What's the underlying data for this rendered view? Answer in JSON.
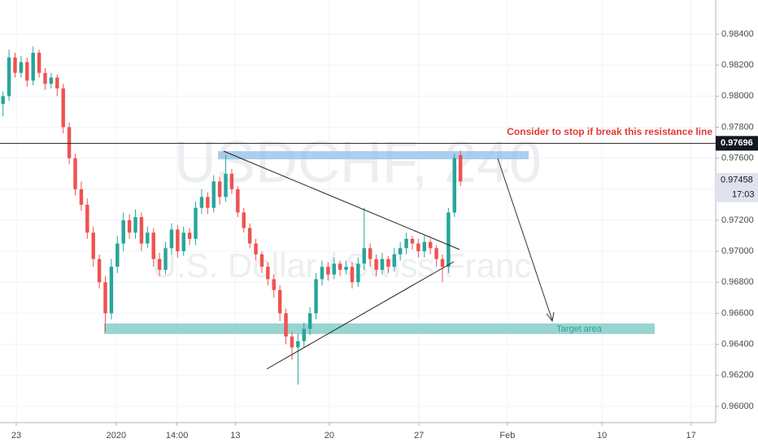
{
  "chart_data": {
    "type": "candlestick",
    "watermark_symbol": "USDCHF, 240",
    "watermark_name": "U.S. Dollar / Swiss Franc",
    "annotation": "Consider to stop if break this resistance line",
    "target_label": "Target area",
    "up_color": "#26a69a",
    "down_color": "#ef5350",
    "open": [
      0.9795,
      0.98,
      0.9825,
      0.9815,
      0.9822,
      0.981,
      0.9828,
      0.9815,
      0.9808,
      0.9812,
      0.9805,
      0.978,
      0.976,
      0.974,
      0.973,
      0.9712,
      0.9695,
      0.968,
      0.966,
      0.969,
      0.9705,
      0.972,
      0.9712,
      0.9722,
      0.9705,
      0.9712,
      0.9695,
      0.9688,
      0.9702,
      0.9714,
      0.97,
      0.9712,
      0.9708,
      0.9728,
      0.9735,
      0.9728,
      0.9745,
      0.9735,
      0.975,
      0.974,
      0.9725,
      0.9715,
      0.9705,
      0.9698,
      0.969,
      0.9682,
      0.9675,
      0.966,
      0.9645,
      0.9638,
      0.9642,
      0.965,
      0.966,
      0.9682,
      0.969,
      0.9685,
      0.9692,
      0.9688,
      0.969,
      0.968,
      0.9692,
      0.9702,
      0.9695,
      0.9688,
      0.9695,
      0.969,
      0.9698,
      0.9702,
      0.9708,
      0.9705,
      0.97,
      0.9706,
      0.9702,
      0.9695,
      0.969,
      0.9725,
      0.9762
    ],
    "high": [
      0.9803,
      0.983,
      0.9828,
      0.9826,
      0.9825,
      0.9832,
      0.983,
      0.9818,
      0.9815,
      0.9814,
      0.9808,
      0.9783,
      0.9763,
      0.9745,
      0.9734,
      0.9716,
      0.9698,
      0.9684,
      0.9695,
      0.971,
      0.9725,
      0.9724,
      0.9727,
      0.9725,
      0.9716,
      0.9715,
      0.9699,
      0.9706,
      0.9718,
      0.9717,
      0.9716,
      0.9715,
      0.9732,
      0.974,
      0.9738,
      0.9749,
      0.9748,
      0.9762,
      0.9753,
      0.9742,
      0.9728,
      0.9718,
      0.9708,
      0.97,
      0.9693,
      0.9685,
      0.9678,
      0.9663,
      0.9648,
      0.9647,
      0.9654,
      0.9664,
      0.9686,
      0.9694,
      0.9693,
      0.9696,
      0.9694,
      0.9694,
      0.9693,
      0.9696,
      0.9728,
      0.9705,
      0.9698,
      0.9699,
      0.9697,
      0.9702,
      0.9706,
      0.9712,
      0.971,
      0.9708,
      0.971,
      0.9708,
      0.9704,
      0.9698,
      0.9728,
      0.9763,
      0.9765
    ],
    "low": [
      0.9787,
      0.9797,
      0.9812,
      0.9812,
      0.9806,
      0.9807,
      0.9812,
      0.9804,
      0.9805,
      0.98,
      0.9776,
      0.9756,
      0.9736,
      0.9726,
      0.9708,
      0.969,
      0.9676,
      0.9648,
      0.9656,
      0.9686,
      0.97,
      0.9708,
      0.9708,
      0.97,
      0.9702,
      0.969,
      0.9684,
      0.9685,
      0.9698,
      0.9696,
      0.9697,
      0.9704,
      0.9704,
      0.9724,
      0.9724,
      0.9725,
      0.973,
      0.9732,
      0.9737,
      0.9722,
      0.9712,
      0.9702,
      0.9694,
      0.9686,
      0.9678,
      0.967,
      0.9655,
      0.964,
      0.963,
      0.9614,
      0.9638,
      0.9646,
      0.9656,
      0.9678,
      0.9681,
      0.9682,
      0.9684,
      0.9685,
      0.9676,
      0.9677,
      0.9688,
      0.969,
      0.9684,
      0.9685,
      0.9686,
      0.9687,
      0.9694,
      0.9698,
      0.9701,
      0.9696,
      0.9696,
      0.9698,
      0.969,
      0.968,
      0.9686,
      0.9722,
      0.9742
    ],
    "close": [
      0.98,
      0.9825,
      0.9815,
      0.9822,
      0.981,
      0.9828,
      0.9815,
      0.9808,
      0.9812,
      0.9805,
      0.978,
      0.976,
      0.974,
      0.973,
      0.9712,
      0.9695,
      0.968,
      0.966,
      0.969,
      0.9705,
      0.972,
      0.9712,
      0.9722,
      0.9705,
      0.9712,
      0.9695,
      0.9688,
      0.9702,
      0.9714,
      0.97,
      0.9712,
      0.9708,
      0.9728,
      0.9735,
      0.9728,
      0.9745,
      0.9735,
      0.975,
      0.974,
      0.9725,
      0.9715,
      0.9705,
      0.9698,
      0.969,
      0.9682,
      0.9675,
      0.966,
      0.9645,
      0.9638,
      0.9642,
      0.965,
      0.966,
      0.9682,
      0.969,
      0.9685,
      0.9692,
      0.9688,
      0.969,
      0.968,
      0.9692,
      0.9702,
      0.9695,
      0.9688,
      0.9695,
      0.969,
      0.9698,
      0.9702,
      0.9708,
      0.9705,
      0.97,
      0.9706,
      0.9702,
      0.9695,
      0.969,
      0.9725,
      0.976,
      0.9745
    ],
    "xlim": [
      -0.5,
      118.4
    ],
    "xticks": [
      {
        "value": 2.2,
        "label": "23"
      },
      {
        "value": 18.8,
        "label": "2020"
      },
      {
        "value": 28.9,
        "label": "14:00"
      },
      {
        "value": 38.6,
        "label": "13"
      },
      {
        "value": 54.2,
        "label": "20"
      },
      {
        "value": 69.1,
        "label": "27"
      },
      {
        "value": 83.8,
        "label": "Feb"
      },
      {
        "value": 99.5,
        "label": "10"
      },
      {
        "value": 114.3,
        "label": "17"
      }
    ],
    "ylim": [
      0.95895,
      0.9862
    ],
    "yticks": [
      {
        "value": 0.96,
        "label": "0.96000"
      },
      {
        "value": 0.962,
        "label": "0.96200"
      },
      {
        "value": 0.964,
        "label": "0.96400"
      },
      {
        "value": 0.966,
        "label": "0.96600"
      },
      {
        "value": 0.968,
        "label": "0.96800"
      },
      {
        "value": 0.97,
        "label": "0.97000"
      },
      {
        "value": 0.972,
        "label": "0.97200"
      },
      {
        "value": 0.974,
        "label": "0.97400"
      },
      {
        "value": 0.976,
        "label": "0.97600"
      },
      {
        "value": 0.978,
        "label": "0.97800"
      },
      {
        "value": 0.98,
        "label": "0.98000"
      },
      {
        "value": 0.982,
        "label": "0.98200"
      },
      {
        "value": 0.984,
        "label": "0.98400"
      }
    ],
    "resistance_price": 0.97696,
    "last_price": 0.97458,
    "countdown": "17:03",
    "grid": true
  }
}
